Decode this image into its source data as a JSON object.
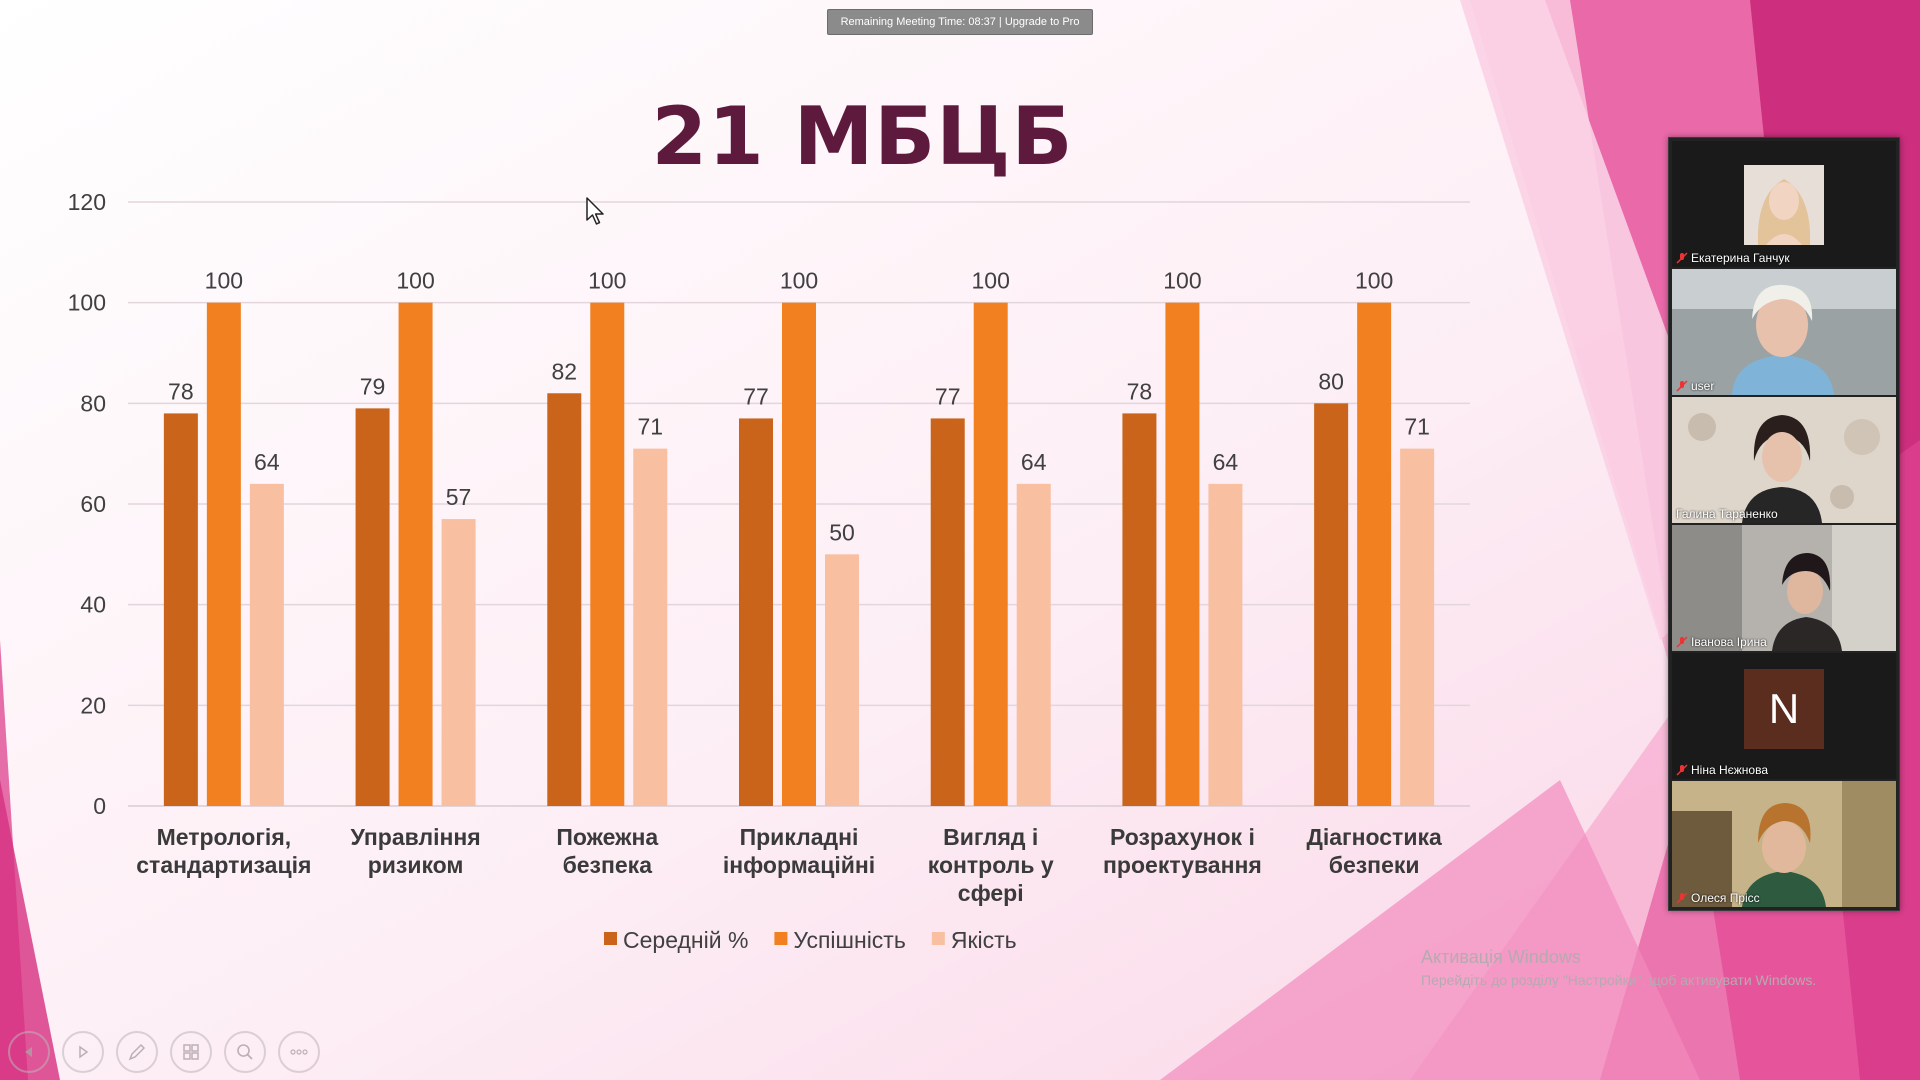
{
  "meeting": {
    "banner": "Remaining Meeting Time: 08:37 | Upgrade to Pro"
  },
  "slide": {
    "title": "21 МБЦБ"
  },
  "chart_data": {
    "type": "bar",
    "title": "21 МБЦБ",
    "categories": [
      [
        "Метрологія,",
        "стандартизація"
      ],
      [
        "Управління",
        "ризиком"
      ],
      [
        "Пожежна",
        "безпека"
      ],
      [
        "Прикладні",
        "інформаційні"
      ],
      [
        "Вигляд і",
        "контроль у",
        "сфері"
      ],
      [
        "Розрахунок і",
        "проектування"
      ],
      [
        "Діагностика",
        "безпеки"
      ]
    ],
    "series": [
      {
        "name": "Середній %",
        "color": "#c9641a",
        "values": [
          78,
          79,
          82,
          77,
          77,
          78,
          80
        ]
      },
      {
        "name": "Успішність",
        "color": "#f28020",
        "values": [
          100,
          100,
          100,
          100,
          100,
          100,
          100
        ]
      },
      {
        "name": "Якість",
        "color": "#f8bfa0",
        "values": [
          64,
          57,
          71,
          50,
          64,
          64,
          71
        ]
      }
    ],
    "ylim": [
      0,
      120
    ],
    "yticks": [
      0,
      20,
      40,
      60,
      80,
      100,
      120
    ],
    "grid": true,
    "legend": "bottom-center",
    "xlabel": "",
    "ylabel": ""
  },
  "participants": [
    {
      "name": "Екатерина Ганчук",
      "muted": true,
      "kind": "photo-avatar"
    },
    {
      "name": "user",
      "muted": true,
      "kind": "video"
    },
    {
      "name": "Галина Тараненко",
      "muted": false,
      "kind": "video"
    },
    {
      "name": "Іванова Ірина",
      "muted": true,
      "kind": "video"
    },
    {
      "name": "Ніна Нєжнова",
      "muted": true,
      "kind": "letter-avatar",
      "initial": "N"
    },
    {
      "name": "Олеся Прісс",
      "muted": true,
      "kind": "video"
    }
  ],
  "windows_activation": {
    "title": "Активація Windows",
    "subtitle": "Перейдіть до розділу \"Настройки\", щоб активувати Windows."
  },
  "toolbar": {
    "icons": [
      "previous-icon",
      "next-icon",
      "pen-icon",
      "slides-grid-icon",
      "zoom-icon",
      "more-icon"
    ]
  },
  "colors": {
    "title": "#5e1a3c",
    "axis_text": "#404040",
    "gridline": "#e2d6dc",
    "accent_pink": "#d6307f"
  }
}
